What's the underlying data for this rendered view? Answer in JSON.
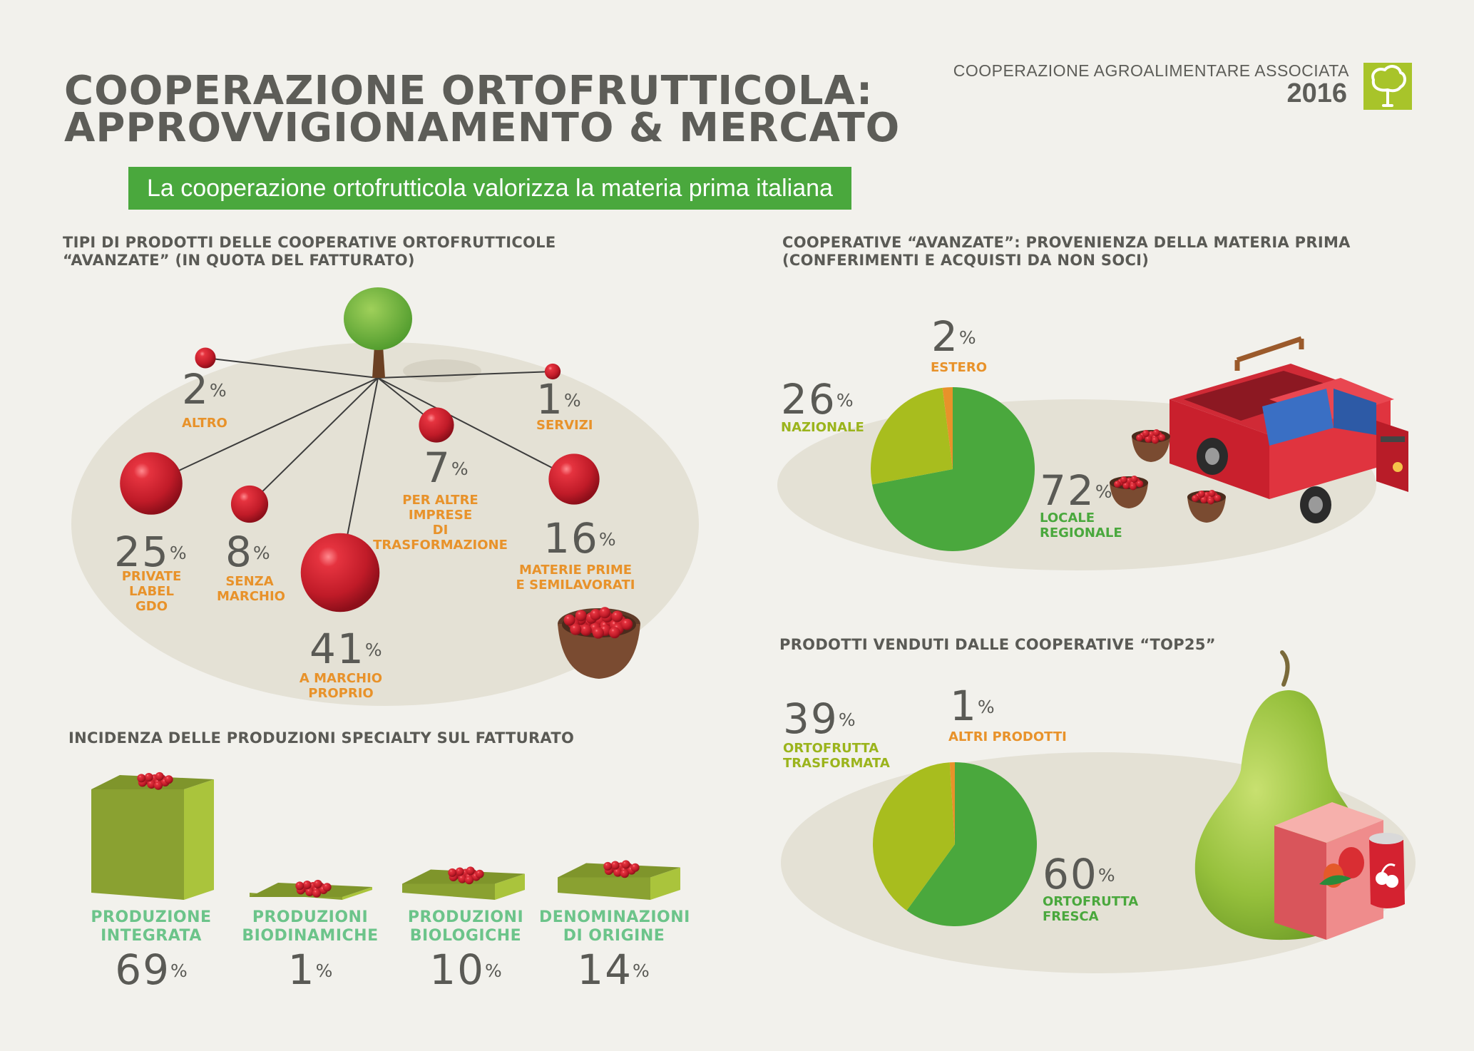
{
  "header": {
    "title_line1": "COOPERAZIONE ORTOFRUTTICOLA:",
    "title_line2": "APPROVVIGIONAMENTO & MERCATO",
    "org_name": "COOPERAZIONE AGROALIMENTARE ASSOCIATA",
    "org_year": "2016",
    "banner": "La cooperazione ortofrutticola valorizza la materia prima italiana"
  },
  "colors": {
    "background": "#f2f1ec",
    "banner_green": "#4aa83d",
    "berry_red": "#c81e2c",
    "label_orange": "#e8922a",
    "pie_green": "#4aa83d",
    "pie_lime": "#a8bd1e",
    "pie_orange": "#e8922a",
    "block_olive": "#8aa131",
    "block_lime": "#aac43c",
    "label_mint": "#6cc48a"
  },
  "icons": [
    "tree-logo-icon",
    "tree-icon",
    "berry-bowl-icon",
    "pickup-truck-icon",
    "pear-icon",
    "juice-box-icon",
    "soda-can-icon"
  ],
  "chart_data": [
    {
      "type": "bubble",
      "title_line1": "TIPI DI PRODOTTI DELLE COOPERATIVE ORTOFRUTTICOLE",
      "title_line2": "“AVANZATE” (IN QUOTA DEL FATTURATO)",
      "unit": "%",
      "items": [
        {
          "value": 2,
          "label": "ALTRO"
        },
        {
          "value": 1,
          "label": "SERVIZI"
        },
        {
          "value": 7,
          "label": "PER ALTRE\nIMPRESE\nDI TRASFORMAZIONE"
        },
        {
          "value": 16,
          "label": "MATERIE PRIME\nE SEMILAVORATI"
        },
        {
          "value": 25,
          "label": "PRIVATE\nLABEL GDO"
        },
        {
          "value": 8,
          "label": "SENZA\nMARCHIO"
        },
        {
          "value": 41,
          "label": "A MARCHIO\nPROPRIO"
        }
      ]
    },
    {
      "type": "pie",
      "title_line1": "COOPERATIVE “AVANZATE”: PROVENIENZA DELLA MATERIA PRIMA",
      "title_line2": "(CONFERIMENTI E ACQUISTI DA NON SOCI)",
      "unit": "%",
      "slices": [
        {
          "label": "LOCALE\nREGIONALE",
          "value": 72,
          "color": "#4aa83d"
        },
        {
          "label": "NAZIONALE",
          "value": 26,
          "color": "#a8bd1e"
        },
        {
          "label": "ESTERO",
          "value": 2,
          "color": "#e8922a"
        }
      ]
    },
    {
      "type": "pie",
      "title": "PRODOTTI VENDUTI DALLE COOPERATIVE “TOP25”",
      "unit": "%",
      "slices": [
        {
          "label": "ORTOFRUTTA\nFRESCA",
          "value": 60,
          "color": "#4aa83d"
        },
        {
          "label": "ORTOFRUTTA\nTRASFORMATA",
          "value": 39,
          "color": "#a8bd1e"
        },
        {
          "label": "ALTRI PRODOTTI",
          "value": 1,
          "color": "#e8922a"
        }
      ]
    },
    {
      "type": "bar",
      "title": "INCIDENZA DELLE PRODUZIONI SPECIALTY SUL FATTURATO",
      "unit": "%",
      "categories": [
        "PRODUZIONE\nINTEGRATA",
        "PRODUZIONI\nBIODINAMICHE",
        "PRODUZIONI\nBIOLOGICHE",
        "DENOMINAZIONI\nDI ORIGINE"
      ],
      "values": [
        69,
        1,
        10,
        14
      ]
    }
  ]
}
